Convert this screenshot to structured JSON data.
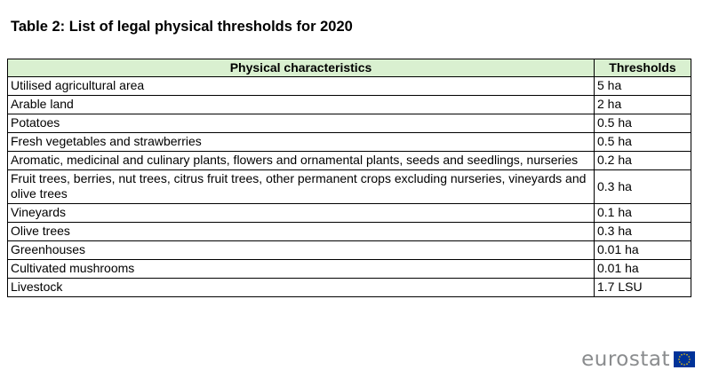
{
  "title": "Table 2: List of legal physical thresholds for 2020",
  "table": {
    "headers": [
      "Physical characteristics",
      "Thresholds"
    ],
    "rows": [
      {
        "characteristic": "Utilised agricultural area",
        "threshold": "5 ha"
      },
      {
        "characteristic": "Arable land",
        "threshold": "2 ha"
      },
      {
        "characteristic": "Potatoes",
        "threshold": "0.5 ha"
      },
      {
        "characteristic": "Fresh vegetables and strawberries",
        "threshold": "0.5 ha"
      },
      {
        "characteristic": "Aromatic, medicinal and culinary plants, flowers and ornamental plants, seeds and seedlings, nurseries",
        "threshold": "0.2 ha"
      },
      {
        "characteristic": "Fruit trees, berries, nut trees, citrus fruit trees, other permanent crops excluding nurseries, vineyards and olive trees",
        "threshold": "0.3 ha"
      },
      {
        "characteristic": "Vineyards",
        "threshold": "0.1 ha"
      },
      {
        "characteristic": "Olive trees",
        "threshold": "0.3 ha"
      },
      {
        "characteristic": "Greenhouses",
        "threshold": "0.01 ha"
      },
      {
        "characteristic": "Cultivated mushrooms",
        "threshold": "0.01 ha"
      },
      {
        "characteristic": "Livestock",
        "threshold": "1.7 LSU"
      }
    ]
  },
  "logo": {
    "text": "eurostat",
    "flag_icon": "eu-flag-icon"
  },
  "colors": {
    "header_background": "#d9f0d0",
    "logo_text": "#8a8c8e",
    "flag_blue": "#003399",
    "flag_stars": "#ffcc00"
  }
}
